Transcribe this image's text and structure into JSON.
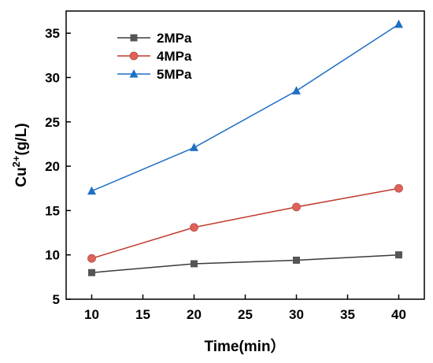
{
  "chart_data": {
    "type": "line",
    "xlabel": "Time(min）",
    "ylabel_base": "Cu",
    "ylabel_sup": "2+",
    "ylabel_rest": "(g/L)",
    "x": [
      10,
      20,
      30,
      40
    ],
    "xlim": [
      7.5,
      42.5
    ],
    "ylim": [
      5,
      37.5
    ],
    "xticks": [
      10,
      15,
      20,
      25,
      30,
      35,
      40
    ],
    "yticks": [
      5,
      10,
      15,
      20,
      25,
      30,
      35
    ],
    "grid": false,
    "legend_position": "top-left",
    "series": [
      {
        "name": "2MPa",
        "values": [
          8.0,
          9.0,
          9.4,
          10.0
        ],
        "color": "#3a3a3a",
        "marker_color": "#555555",
        "marker": "square"
      },
      {
        "name": "4MPa",
        "values": [
          9.6,
          13.1,
          15.4,
          17.5
        ],
        "color": "#c0392b",
        "marker_color": "#e0605a",
        "marker": "circle"
      },
      {
        "name": "5MPa",
        "values": [
          17.2,
          22.1,
          28.5,
          36.0
        ],
        "color": "#1f6fc5",
        "marker_color": "#1f6fc5",
        "marker": "triangle"
      }
    ]
  }
}
